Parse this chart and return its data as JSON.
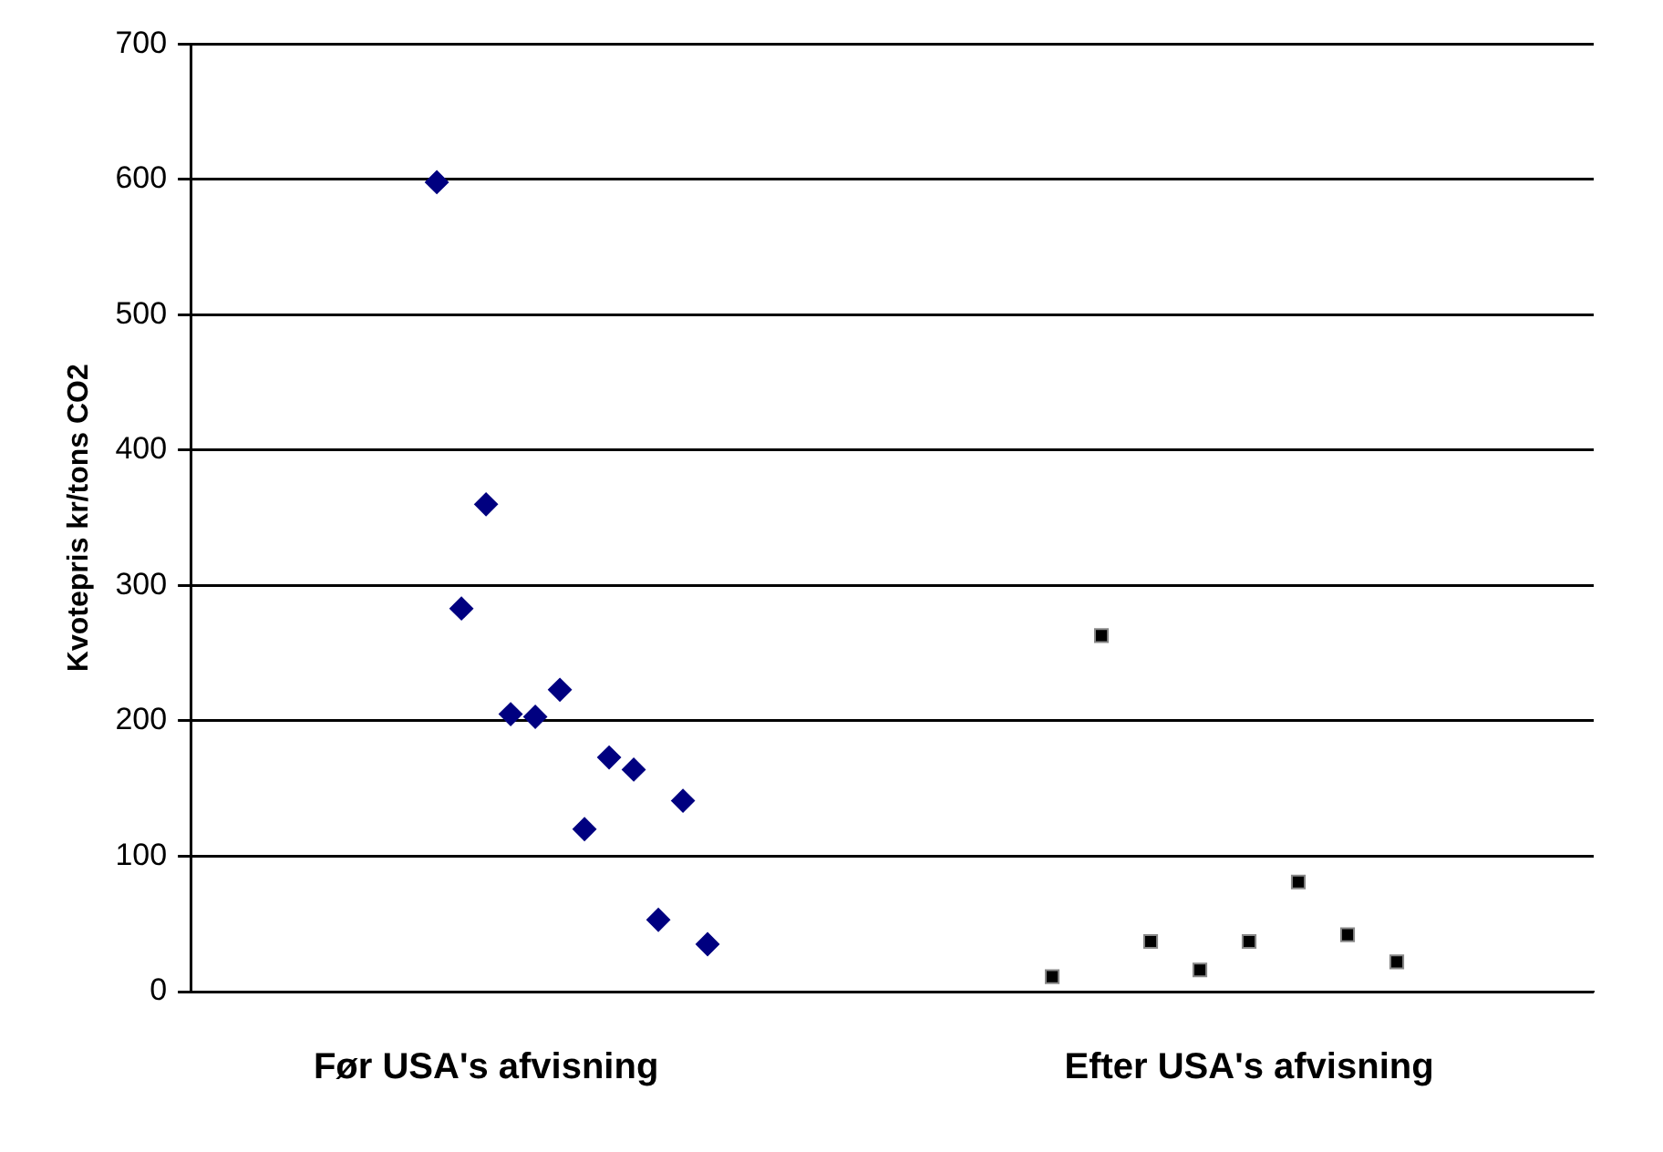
{
  "chart_data": {
    "type": "scatter",
    "ylabel": "Kvotepris kr/tons CO2",
    "categories": [
      null,
      null,
      null,
      null,
      null,
      null,
      null,
      null,
      null,
      null,
      null,
      null,
      "Før USA's afvisning",
      null,
      null,
      null,
      null,
      null,
      null,
      null,
      null,
      null,
      null,
      null,
      null,
      null,
      null,
      null,
      null,
      null,
      null,
      null,
      null,
      null,
      null,
      null,
      null,
      null,
      null,
      null,
      null,
      null,
      null,
      "Efter USA's afvisning",
      null,
      null,
      null,
      null,
      null,
      null,
      null,
      null,
      null,
      null,
      null,
      null,
      null,
      null
    ],
    "ylim": [
      0,
      700
    ],
    "yticks": [
      0,
      100,
      200,
      300,
      400,
      500,
      600,
      700
    ],
    "grid": "y",
    "legend": false,
    "series": [
      {
        "color": "#000080",
        "marker": "diamond",
        "values": [
          null,
          null,
          null,
          null,
          null,
          null,
          null,
          null,
          null,
          null,
          598,
          283,
          360,
          205,
          203,
          223,
          120,
          173,
          164,
          53,
          141,
          35,
          null,
          null,
          null,
          null,
          null,
          null,
          null,
          null,
          null,
          null,
          null,
          null,
          null,
          null,
          null,
          null,
          null,
          null,
          null,
          null,
          null,
          null,
          null,
          null,
          null,
          null,
          null,
          null,
          null,
          null,
          null,
          null,
          null,
          null,
          null,
          null
        ]
      },
      {
        "color": "#000000",
        "marker": "square",
        "values": [
          null,
          null,
          null,
          null,
          null,
          null,
          null,
          null,
          null,
          null,
          null,
          null,
          null,
          null,
          null,
          null,
          null,
          null,
          null,
          null,
          null,
          null,
          null,
          null,
          null,
          null,
          null,
          null,
          null,
          null,
          null,
          null,
          null,
          null,
          null,
          11,
          null,
          263,
          null,
          37,
          null,
          16,
          null,
          37,
          null,
          81,
          null,
          42,
          null,
          22,
          null,
          null,
          null,
          null,
          null,
          null,
          null,
          null
        ]
      }
    ]
  }
}
